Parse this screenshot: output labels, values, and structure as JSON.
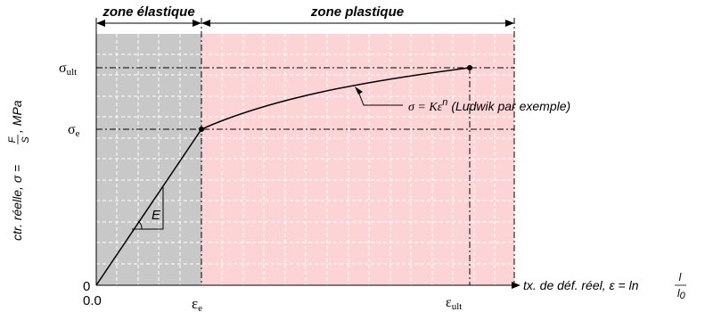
{
  "zones": {
    "elastic": "zone élastique",
    "plastic": "zone plastique"
  },
  "y_axis": {
    "label": "ctr. réelle, σ = ",
    "frac_num": "F",
    "frac_den": "S",
    "unit": ", MPa",
    "tick_ult": "σ",
    "tick_ult_sub": "ult",
    "tick_e": "σ",
    "tick_e_sub": "e",
    "zero": "0"
  },
  "x_axis": {
    "label": "tx. de déf. réel, ε = ln ",
    "frac_num": "l",
    "frac_den": "l",
    "frac_den_sub": "0",
    "origin": "0.0",
    "tick_e": "ε",
    "tick_e_sub": "e",
    "tick_ult": "ε",
    "tick_ult_sub": "ult"
  },
  "modulus_label": "E",
  "curve_annotation": {
    "lhs": "σ = Kε",
    "exponent": "n",
    "note": "(Ludwik par exemple)"
  },
  "colors": {
    "elastic_zone": "#c8c8c8",
    "plastic_zone": "#fcd4d6",
    "grid": "#ffffff",
    "curve": "#000000"
  }
}
